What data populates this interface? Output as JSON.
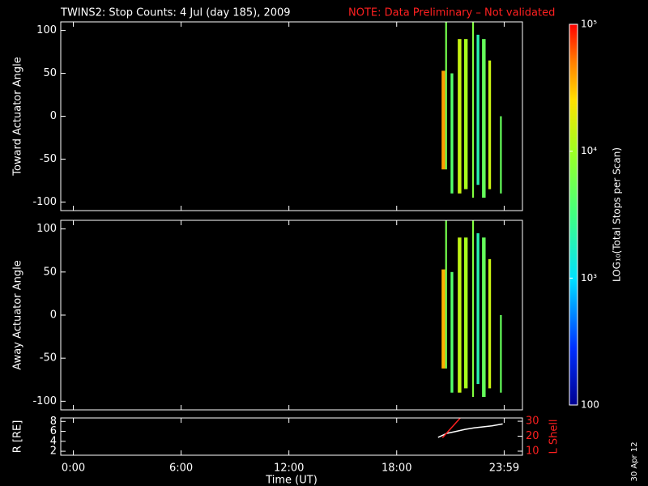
{
  "title": "TWINS2: Stop Counts:  4 Jul (day 185), 2009",
  "note": "NOTE: Data Preliminary – Not validated",
  "side_text": "30 Apr 12",
  "colorbar": {
    "label": "LOG₁₀(Total Stops per Scan)",
    "log": true,
    "zlim": [
      100,
      100000
    ],
    "zticks": [
      100,
      {
        "value": 1000,
        "label": "10³"
      },
      {
        "value": 10000,
        "label": "10⁴"
      },
      {
        "value": 100000,
        "label": "10⁵"
      }
    ]
  },
  "chart_data": [
    {
      "type": "strips",
      "y_label": "Toward Actuator Angle",
      "ylim": [
        -110,
        110
      ],
      "yticks": [
        -100,
        -50,
        0,
        50,
        100
      ],
      "strips": [
        {
          "x": [
            20.5,
            20.7
          ],
          "y": [
            -62,
            53
          ],
          "value": 40000
        },
        {
          "x": [
            20.7,
            20.8
          ],
          "y": [
            -62,
            110
          ],
          "value": 6000
        },
        {
          "x": [
            21.0,
            21.15
          ],
          "y": [
            -90,
            50
          ],
          "value": 4000
        },
        {
          "x": [
            21.4,
            21.6
          ],
          "y": [
            -90,
            90
          ],
          "value": 15000
        },
        {
          "x": [
            21.75,
            21.95
          ],
          "y": [
            -85,
            90
          ],
          "value": 11000
        },
        {
          "x": [
            22.2,
            22.3
          ],
          "y": [
            -95,
            110
          ],
          "value": 7000
        },
        {
          "x": [
            22.45,
            22.6
          ],
          "y": [
            -80,
            95
          ],
          "value": 2000
        },
        {
          "x": [
            22.75,
            22.95
          ],
          "y": [
            -95,
            90
          ],
          "value": 5000
        },
        {
          "x": [
            23.1,
            23.25
          ],
          "y": [
            -85,
            65
          ],
          "value": 15000
        },
        {
          "x": [
            23.75,
            23.85
          ],
          "y": [
            -90,
            0
          ],
          "value": 5000
        }
      ]
    },
    {
      "type": "strips",
      "y_label": "Away Actuator Angle",
      "ylim": [
        -110,
        110
      ],
      "yticks": [
        -100,
        -50,
        0,
        50,
        100
      ],
      "strips": [
        {
          "x": [
            20.5,
            20.7
          ],
          "y": [
            -62,
            53
          ],
          "value": 35000
        },
        {
          "x": [
            20.7,
            20.8
          ],
          "y": [
            -62,
            110
          ],
          "value": 6000
        },
        {
          "x": [
            21.0,
            21.15
          ],
          "y": [
            -90,
            50
          ],
          "value": 4000
        },
        {
          "x": [
            21.4,
            21.6
          ],
          "y": [
            -90,
            90
          ],
          "value": 14000
        },
        {
          "x": [
            21.75,
            21.95
          ],
          "y": [
            -85,
            90
          ],
          "value": 11000
        },
        {
          "x": [
            22.2,
            22.3
          ],
          "y": [
            -95,
            110
          ],
          "value": 7000
        },
        {
          "x": [
            22.45,
            22.6
          ],
          "y": [
            -80,
            95
          ],
          "value": 2000
        },
        {
          "x": [
            22.75,
            22.95
          ],
          "y": [
            -95,
            90
          ],
          "value": 5000
        },
        {
          "x": [
            23.1,
            23.25
          ],
          "y": [
            -85,
            65
          ],
          "value": 15000
        },
        {
          "x": [
            23.75,
            23.85
          ],
          "y": [
            -90,
            0
          ],
          "value": 5000
        }
      ]
    },
    {
      "type": "line",
      "x_label": "Time (UT)",
      "xlim": [
        -0.7,
        25
      ],
      "xticks": [
        {
          "value": 0,
          "label": "0:00"
        },
        {
          "value": 6,
          "label": "6:00"
        },
        {
          "value": 12,
          "label": "12:00"
        },
        {
          "value": 18,
          "label": "18:00"
        },
        {
          "value": 23.983,
          "label": "23:59"
        }
      ],
      "y_label": "R [RE]",
      "ylim": [
        1.2,
        8.7
      ],
      "yticks": [
        2,
        4,
        6,
        8
      ],
      "y2_label": "L Shell",
      "y2lim": [
        7.3,
        32.2
      ],
      "y2ticks": [
        10,
        20,
        30
      ],
      "series": [
        {
          "color": "#ffffff",
          "x": [
            20.3,
            20.8,
            21.3,
            21.8,
            22.3,
            22.8,
            23.3,
            23.9
          ],
          "values": [
            4.8,
            5.6,
            6.0,
            6.4,
            6.7,
            6.9,
            7.1,
            7.5
          ]
        },
        {
          "color": "#ff2020",
          "axis": "y2",
          "x": [
            20.55,
            21.0,
            21.6
          ],
          "values": [
            19,
            25,
            33
          ]
        }
      ]
    }
  ]
}
